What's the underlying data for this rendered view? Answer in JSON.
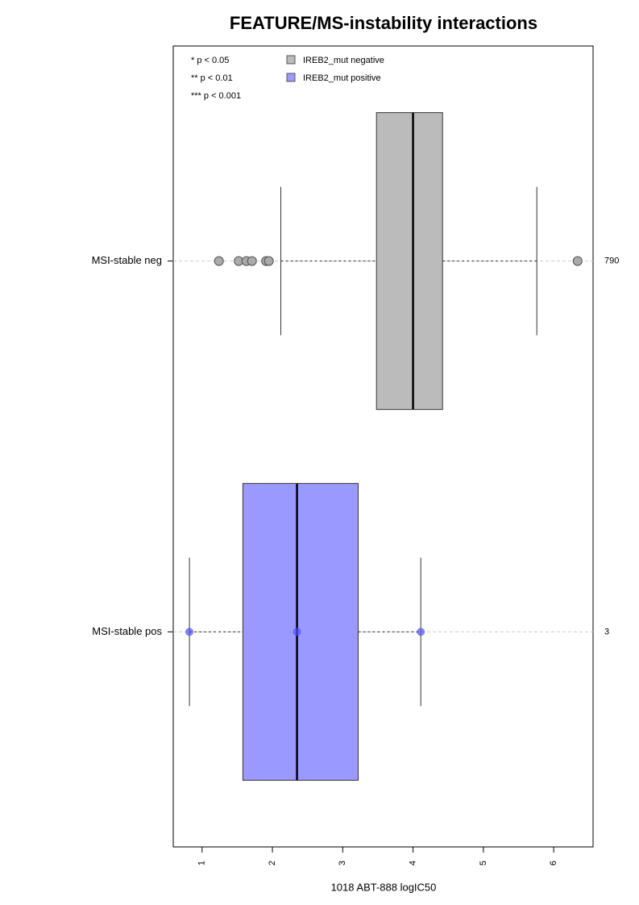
{
  "chart_data": {
    "type": "boxplot",
    "title": "FEATURE/MS-instability interactions",
    "x_label": "1018 ABT-888 logIC50",
    "xlim": [
      0.59,
      6.56
    ],
    "xticks": [
      1,
      2,
      3,
      4,
      5,
      6
    ],
    "annotations": [
      "* p < 0.05",
      "** p < 0.01",
      "*** p < 0.001"
    ],
    "series": [
      {
        "name": "IREB2_mut negative",
        "color": "#bbbbbb",
        "category": "MSI-stable neg",
        "count": 790,
        "whisker_low": 2.12,
        "q1": 3.48,
        "median": 4.0,
        "q3": 4.42,
        "whisker_high": 5.76,
        "points": [
          1.24,
          1.52,
          1.63,
          1.71,
          1.91,
          1.95,
          6.34
        ]
      },
      {
        "name": "IREB2_mut positive",
        "color": "#9999ff",
        "category": "MSI-stable pos",
        "count": 3,
        "whisker_low": 0.82,
        "q1": 1.58,
        "median": 2.35,
        "q3": 3.22,
        "whisker_high": 4.11,
        "points": [
          0.82,
          2.35,
          4.11
        ]
      }
    ]
  }
}
